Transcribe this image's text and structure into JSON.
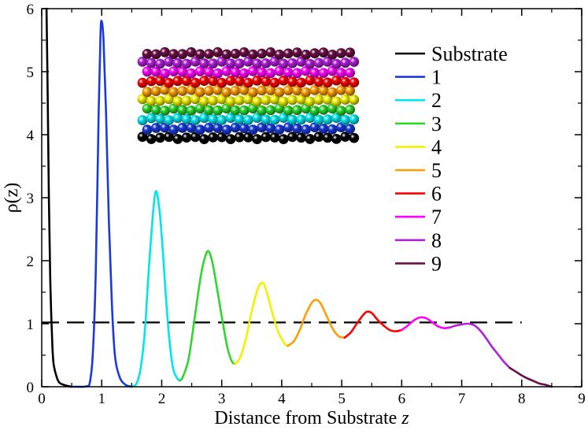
{
  "chart_data": {
    "type": "line",
    "title": "",
    "xlabel": "Distance from Substrate",
    "xlabel_var": "z",
    "ylabel": "ρ(z)",
    "xlim": [
      0,
      9
    ],
    "ylim": [
      0,
      6
    ],
    "xticks": [
      "0",
      "1",
      "2",
      "3",
      "4",
      "5",
      "6",
      "7",
      "8",
      "9"
    ],
    "yticks": [
      "0",
      "1",
      "2",
      "3",
      "4",
      "5",
      "6"
    ],
    "legend_position": "top-right",
    "reference_line": {
      "y": 1.02,
      "x_range": [
        0,
        8
      ],
      "style": "dashed",
      "color": "#000000"
    },
    "series": [
      {
        "name": "Substrate",
        "color": "#000000",
        "points": [
          [
            0.08,
            6.0
          ],
          [
            0.1,
            4.6
          ],
          [
            0.12,
            3.0
          ],
          [
            0.14,
            1.8
          ],
          [
            0.16,
            1.1
          ],
          [
            0.18,
            0.6
          ],
          [
            0.2,
            0.35
          ],
          [
            0.25,
            0.15
          ],
          [
            0.3,
            0.06
          ],
          [
            0.4,
            0.02
          ],
          [
            0.5,
            0.0
          ]
        ]
      },
      {
        "name": "1",
        "color": "#1a3adb",
        "points": [
          [
            0.5,
            0.0
          ],
          [
            0.6,
            0.0
          ],
          [
            0.7,
            0.0
          ],
          [
            0.75,
            0.01
          ],
          [
            0.8,
            0.06
          ],
          [
            0.85,
            0.5
          ],
          [
            0.9,
            1.8
          ],
          [
            0.95,
            4.4
          ],
          [
            0.98,
            5.6
          ],
          [
            1.0,
            5.8
          ],
          [
            1.03,
            5.5
          ],
          [
            1.07,
            4.4
          ],
          [
            1.12,
            2.6
          ],
          [
            1.17,
            1.3
          ],
          [
            1.22,
            0.5
          ],
          [
            1.3,
            0.15
          ],
          [
            1.4,
            0.03
          ],
          [
            1.5,
            0.0
          ]
        ]
      },
      {
        "name": "2",
        "color": "#00e5ee",
        "points": [
          [
            1.5,
            0.0
          ],
          [
            1.58,
            0.05
          ],
          [
            1.65,
            0.3
          ],
          [
            1.72,
            0.9
          ],
          [
            1.78,
            1.8
          ],
          [
            1.85,
            2.7
          ],
          [
            1.9,
            3.1
          ],
          [
            1.95,
            2.9
          ],
          [
            2.0,
            2.4
          ],
          [
            2.05,
            1.7
          ],
          [
            2.1,
            1.05
          ],
          [
            2.15,
            0.55
          ],
          [
            2.2,
            0.25
          ],
          [
            2.27,
            0.12
          ],
          [
            2.3,
            0.1
          ]
        ]
      },
      {
        "name": "3",
        "color": "#2ed62e",
        "points": [
          [
            2.3,
            0.1
          ],
          [
            2.35,
            0.15
          ],
          [
            2.45,
            0.45
          ],
          [
            2.55,
            1.1
          ],
          [
            2.65,
            1.75
          ],
          [
            2.72,
            2.05
          ],
          [
            2.78,
            2.15
          ],
          [
            2.85,
            1.95
          ],
          [
            2.95,
            1.4
          ],
          [
            3.03,
            0.95
          ],
          [
            3.1,
            0.6
          ],
          [
            3.17,
            0.4
          ],
          [
            3.22,
            0.36
          ]
        ]
      },
      {
        "name": "4",
        "color": "#f2f200",
        "points": [
          [
            3.22,
            0.36
          ],
          [
            3.3,
            0.45
          ],
          [
            3.4,
            0.75
          ],
          [
            3.5,
            1.2
          ],
          [
            3.6,
            1.55
          ],
          [
            3.68,
            1.65
          ],
          [
            3.75,
            1.5
          ],
          [
            3.85,
            1.15
          ],
          [
            3.95,
            0.85
          ],
          [
            4.05,
            0.68
          ],
          [
            4.1,
            0.65
          ]
        ]
      },
      {
        "name": "5",
        "color": "#ff9e00",
        "points": [
          [
            4.1,
            0.65
          ],
          [
            4.2,
            0.72
          ],
          [
            4.3,
            0.9
          ],
          [
            4.4,
            1.15
          ],
          [
            4.5,
            1.33
          ],
          [
            4.57,
            1.38
          ],
          [
            4.65,
            1.32
          ],
          [
            4.75,
            1.12
          ],
          [
            4.85,
            0.92
          ],
          [
            4.95,
            0.8
          ],
          [
            5.05,
            0.78
          ]
        ]
      },
      {
        "name": "6",
        "color": "#ff0000",
        "points": [
          [
            5.05,
            0.78
          ],
          [
            5.15,
            0.86
          ],
          [
            5.25,
            1.0
          ],
          [
            5.35,
            1.13
          ],
          [
            5.42,
            1.19
          ],
          [
            5.5,
            1.17
          ],
          [
            5.6,
            1.06
          ],
          [
            5.7,
            0.97
          ],
          [
            5.8,
            0.9
          ],
          [
            5.9,
            0.88
          ],
          [
            6.0,
            0.9
          ]
        ]
      },
      {
        "name": "7",
        "color": "#ff00ff",
        "points": [
          [
            6.0,
            0.9
          ],
          [
            6.1,
            0.97
          ],
          [
            6.2,
            1.05
          ],
          [
            6.3,
            1.1
          ],
          [
            6.4,
            1.09
          ],
          [
            6.5,
            1.03
          ],
          [
            6.6,
            0.96
          ],
          [
            6.7,
            0.93
          ],
          [
            6.8,
            0.94
          ]
        ]
      },
      {
        "name": "8",
        "color": "#b020d8",
        "points": [
          [
            6.8,
            0.94
          ],
          [
            6.9,
            0.97
          ],
          [
            7.0,
            0.99
          ],
          [
            7.1,
            1.0
          ],
          [
            7.2,
            0.98
          ],
          [
            7.3,
            0.9
          ],
          [
            7.4,
            0.78
          ],
          [
            7.5,
            0.64
          ],
          [
            7.6,
            0.52
          ],
          [
            7.7,
            0.4
          ],
          [
            7.8,
            0.3
          ]
        ]
      },
      {
        "name": "9",
        "color": "#6b1045",
        "points": [
          [
            7.8,
            0.3
          ],
          [
            7.9,
            0.24
          ],
          [
            8.0,
            0.18
          ],
          [
            8.1,
            0.13
          ],
          [
            8.2,
            0.09
          ],
          [
            8.3,
            0.05
          ],
          [
            8.4,
            0.03
          ],
          [
            8.5,
            0.0
          ]
        ]
      }
    ]
  },
  "inset": {
    "layers": [
      {
        "color": "#000000"
      },
      {
        "color": "#1a3adb"
      },
      {
        "color": "#00e5ee"
      },
      {
        "color": "#2ed62e"
      },
      {
        "color": "#f2f200"
      },
      {
        "color": "#ff9e00"
      },
      {
        "color": "#ff0000"
      },
      {
        "color": "#ff00ff"
      },
      {
        "color": "#b020d8"
      },
      {
        "color": "#6b1045"
      }
    ]
  }
}
